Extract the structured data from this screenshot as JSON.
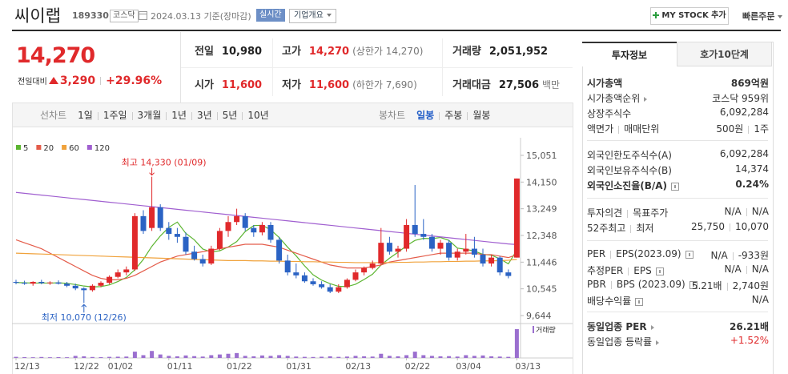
{
  "header": {
    "name": "씨이랩",
    "code": "189330",
    "market": "코스닥",
    "date": "2024.03.13 기준(장마감)",
    "realtime": "실시간",
    "company_info": "기업개요",
    "my_stock": "MY STOCK 추가",
    "quick_order": "빠른주문"
  },
  "quote": {
    "price": "14,270",
    "change_label": "전일대비",
    "change": "3,290",
    "change_rate": "+29.96%",
    "stats": [
      [
        {
          "label": "전일",
          "value": "10,980"
        },
        {
          "label": "시가",
          "value": "11,600",
          "color": "#e0292b"
        }
      ],
      [
        {
          "label": "고가",
          "value": "14,270",
          "note": "(상한가 14,270)",
          "color": "#e0292b"
        },
        {
          "label": "저가",
          "value": "11,600",
          "note": "(하한가 7,690)",
          "color": "#e0292b"
        }
      ],
      [
        {
          "label": "거래량",
          "value": "2,051,952"
        },
        {
          "label": "거래대금",
          "value": "27,506",
          "note": "백만"
        }
      ]
    ]
  },
  "chart_tabs": {
    "line_label": "선차트",
    "line_periods": [
      "1일",
      "1주일",
      "3개월",
      "1년",
      "3년",
      "5년",
      "10년"
    ],
    "candle_label": "봉차트",
    "candle_periods": [
      "일봉",
      "주봉",
      "월봉"
    ],
    "active_candle_period": 0
  },
  "chart_data": {
    "type": "candlestick",
    "categories": [
      "12/13",
      null,
      null,
      null,
      null,
      null,
      null,
      "12/22",
      null,
      null,
      null,
      "01/02",
      null,
      null,
      null,
      null,
      null,
      null,
      "01/11",
      null,
      null,
      null,
      null,
      null,
      null,
      "01/22",
      null,
      null,
      null,
      null,
      null,
      null,
      "01/31",
      null,
      null,
      null,
      null,
      null,
      null,
      "02/13",
      null,
      null,
      null,
      null,
      null,
      null,
      "02/22",
      null,
      null,
      null,
      null,
      null,
      "03/04",
      null,
      null,
      null,
      null,
      null,
      null,
      "03/13"
    ],
    "open": [
      10780,
      10750,
      10720,
      10780,
      10740,
      10760,
      10720,
      10650,
      10560,
      10500,
      10650,
      10750,
      10950,
      11100,
      11200,
      13000,
      12600,
      13300,
      12600,
      12400,
      12300,
      11800,
      11550,
      11400,
      11900,
      12500,
      12800,
      13000,
      12600,
      12450,
      12700,
      12200,
      11500,
      11100,
      11000,
      10800,
      10700,
      10600,
      10450,
      10600,
      10850,
      11100,
      11250,
      11400,
      12100,
      11800,
      11900,
      12700,
      12400,
      12300,
      11900,
      12100,
      11600,
      11800,
      11900,
      11700,
      11400,
      11600,
      11100,
      11600
    ],
    "high": [
      10850,
      10820,
      10800,
      10850,
      10800,
      10830,
      10780,
      10720,
      10600,
      10700,
      10800,
      11000,
      11200,
      11300,
      13100,
      13200,
      14330,
      13400,
      12800,
      12600,
      12450,
      12000,
      11700,
      12000,
      12600,
      13000,
      13250,
      13100,
      12700,
      12800,
      12800,
      12300,
      11700,
      11400,
      11100,
      10900,
      10800,
      10700,
      10700,
      10900,
      11200,
      11300,
      11500,
      12600,
      12300,
      12000,
      12900,
      14050,
      12900,
      12400,
      12200,
      12200,
      11900,
      12400,
      12300,
      11900,
      11700,
      11650,
      11200,
      14270
    ],
    "low": [
      10700,
      10680,
      10650,
      10700,
      10680,
      10690,
      10600,
      10500,
      10070,
      10450,
      10600,
      10700,
      10900,
      11000,
      11150,
      12400,
      12500,
      12500,
      12200,
      12100,
      11700,
      11500,
      11300,
      11350,
      11850,
      12300,
      12700,
      12500,
      12300,
      12350,
      12100,
      11400,
      11000,
      10900,
      10750,
      10650,
      10550,
      10400,
      10400,
      10550,
      10800,
      11000,
      11200,
      11350,
      11700,
      11600,
      11800,
      12300,
      12200,
      11800,
      11700,
      11500,
      11500,
      11700,
      11600,
      11300,
      11300,
      11000,
      10900,
      11600
    ],
    "close": [
      10750,
      10720,
      10780,
      10740,
      10760,
      10720,
      10650,
      10560,
      10500,
      10650,
      10750,
      10950,
      11100,
      11200,
      13000,
      12500,
      13300,
      12600,
      12400,
      12300,
      11800,
      11550,
      11400,
      11900,
      12500,
      12800,
      13000,
      12600,
      12450,
      12700,
      12200,
      11500,
      11100,
      11000,
      10800,
      10700,
      10600,
      10450,
      10600,
      10850,
      11100,
      11250,
      11400,
      12100,
      11800,
      11900,
      12700,
      12400,
      12300,
      11900,
      12100,
      11600,
      11800,
      11900,
      11700,
      11400,
      11600,
      11100,
      10980,
      14270
    ],
    "up_color": "#e0292b",
    "down_color": "#2b63c4",
    "moving_averages": [
      {
        "name": "5",
        "color": "#5cb531",
        "values": [
          10760,
          10750,
          10740,
          10740,
          10740,
          10750,
          10730,
          10690,
          10640,
          10610,
          10620,
          10680,
          10790,
          10930,
          11190,
          11540,
          11980,
          12330,
          12620,
          12800,
          12420,
          12200,
          11890,
          11790,
          11830,
          11960,
          12140,
          12480,
          12680,
          12690,
          12540,
          12280,
          11950,
          11660,
          11320,
          11020,
          10840,
          10720,
          10630,
          10620,
          10700,
          10860,
          11040,
          11350,
          11580,
          11780,
          12000,
          12180,
          12250,
          12240,
          12280,
          12180,
          11920,
          11880,
          11820,
          11710,
          11680,
          11560,
          11390,
          11850
        ]
      },
      {
        "name": "20",
        "color": "#e45c4a",
        "values": [
          12200,
          12100,
          12000,
          11900,
          11750,
          11600,
          11450,
          11300,
          11150,
          11000,
          10900,
          10850,
          10850,
          10900,
          11000,
          11150,
          11300,
          11450,
          11550,
          11650,
          11700,
          11750,
          11800,
          11850,
          11900,
          11950,
          12000,
          12050,
          12050,
          12050,
          12000,
          11950,
          11850,
          11750,
          11650,
          11550,
          11450,
          11350,
          11300,
          11250,
          11250,
          11250,
          11300,
          11350,
          11450,
          11500,
          11550,
          11600,
          11650,
          11700,
          11750,
          11750,
          11750,
          11750,
          11750,
          11700,
          11700,
          11650,
          11600,
          11700
        ]
      },
      {
        "name": "60",
        "color": "#f0a23b",
        "values": [
          11750,
          11740,
          11730,
          11720,
          11710,
          11700,
          11690,
          11680,
          11670,
          11660,
          11650,
          11640,
          11630,
          11620,
          11610,
          11600,
          11590,
          11580,
          11570,
          11560,
          11550,
          11540,
          11530,
          11520,
          11510,
          11500,
          11500,
          11500,
          11490,
          11490,
          11480,
          11480,
          11470,
          11470,
          11460,
          11460,
          11450,
          11450,
          11440,
          11440,
          11430,
          11430,
          11430,
          11430,
          11430,
          11440,
          11440,
          11450,
          11450,
          11460,
          11460,
          11470,
          11470,
          11480,
          11480,
          11490,
          11490,
          11500,
          11510,
          11540
        ]
      },
      {
        "name": "120",
        "color": "#a05fd0",
        "values": [
          13800,
          13770,
          13740,
          13710,
          13680,
          13650,
          13620,
          13590,
          13560,
          13530,
          13500,
          13470,
          13440,
          13410,
          13380,
          13350,
          13320,
          13290,
          13260,
          13230,
          13200,
          13170,
          13140,
          13110,
          13080,
          13050,
          13020,
          12990,
          12960,
          12930,
          12900,
          12870,
          12840,
          12810,
          12780,
          12750,
          12720,
          12690,
          12660,
          12630,
          12600,
          12570,
          12540,
          12510,
          12480,
          12450,
          12420,
          12390,
          12360,
          12330,
          12300,
          12270,
          12240,
          12210,
          12180,
          12150,
          12120,
          12090,
          12060,
          12040
        ]
      }
    ],
    "volume": {
      "name": "거래량",
      "color": "#9b6fcf",
      "values": [
        80000,
        60000,
        50000,
        70000,
        50000,
        60000,
        50000,
        150000,
        120000,
        70000,
        60000,
        80000,
        90000,
        100000,
        450000,
        200000,
        500000,
        250000,
        150000,
        120000,
        180000,
        130000,
        100000,
        200000,
        250000,
        300000,
        350000,
        150000,
        120000,
        180000,
        150000,
        200000,
        150000,
        100000,
        80000,
        70000,
        90000,
        120000,
        80000,
        100000,
        150000,
        120000,
        100000,
        300000,
        150000,
        120000,
        200000,
        450000,
        200000,
        150000,
        120000,
        130000,
        100000,
        200000,
        150000,
        180000,
        120000,
        100000,
        80000,
        2051952
      ]
    },
    "ylim": [
      9644,
      15051
    ],
    "yticks": [
      {
        "value": 15051,
        "label": "15,051"
      },
      {
        "value": 14150,
        "label": "14,150"
      },
      {
        "value": 13249,
        "label": "13,249"
      },
      {
        "value": 12348,
        "label": "12,348"
      },
      {
        "value": 11446,
        "label": "11,446"
      },
      {
        "value": 10545,
        "label": "10,545"
      },
      {
        "value": 9644,
        "label": "9,644"
      }
    ],
    "high_label": {
      "text": "최고 14,330 (01/09)",
      "color": "#e0292b"
    },
    "low_label": {
      "text": "최저 10,070 (12/26)",
      "color": "#2b63c4"
    }
  },
  "side": {
    "tabs": [
      "투자정보",
      "호가10단계"
    ],
    "active_tab": 0,
    "groups": [
      [
        {
          "label": [
            "시가총액"
          ],
          "value": [
            "869억원"
          ],
          "bold": true
        },
        {
          "label": [
            "시가총액순위"
          ],
          "arrow": true,
          "value": [
            "코스닥 959위"
          ]
        },
        {
          "label": [
            "상장주식수"
          ],
          "value": [
            "6,092,284"
          ]
        },
        {
          "label": [
            "액면가",
            "매매단위"
          ],
          "value": [
            "500원",
            "1주"
          ]
        }
      ],
      [
        {
          "label": [
            "외국인한도주식수(A)"
          ],
          "value": [
            "6,092,284"
          ]
        },
        {
          "label": [
            "외국인보유주식수(B)"
          ],
          "value": [
            "14,374"
          ]
        },
        {
          "label": [
            "외국인소진율(B/A)"
          ],
          "help": true,
          "value": [
            "0.24%"
          ],
          "bold": true
        }
      ],
      [
        {
          "label": [
            "투자의견",
            "목표주가"
          ],
          "value": [
            "N/A",
            "N/A"
          ]
        },
        {
          "label": [
            "52주최고",
            "최저"
          ],
          "value": [
            "25,750",
            "10,070"
          ]
        }
      ],
      [
        {
          "label": [
            "PER",
            "EPS(2023.09)"
          ],
          "help": true,
          "value": [
            "N/A",
            "-933원"
          ]
        },
        {
          "label": [
            "추정PER",
            "EPS"
          ],
          "help": true,
          "value": [
            "N/A",
            "N/A"
          ]
        },
        {
          "label": [
            "PBR",
            "BPS (2023.09)"
          ],
          "help": true,
          "value": [
            "5.21배",
            "2,740원"
          ]
        },
        {
          "label": [
            "배당수익률"
          ],
          "help": true,
          "value": [
            "N/A"
          ]
        }
      ],
      [
        {
          "label": [
            "동일업종 PER"
          ],
          "arrow": true,
          "value": [
            "26.21배"
          ],
          "bold": true
        },
        {
          "label": [
            "동일업종 등락률"
          ],
          "arrow": true,
          "value": [
            "+1.52%"
          ],
          "color": "#e0292b"
        }
      ]
    ]
  }
}
